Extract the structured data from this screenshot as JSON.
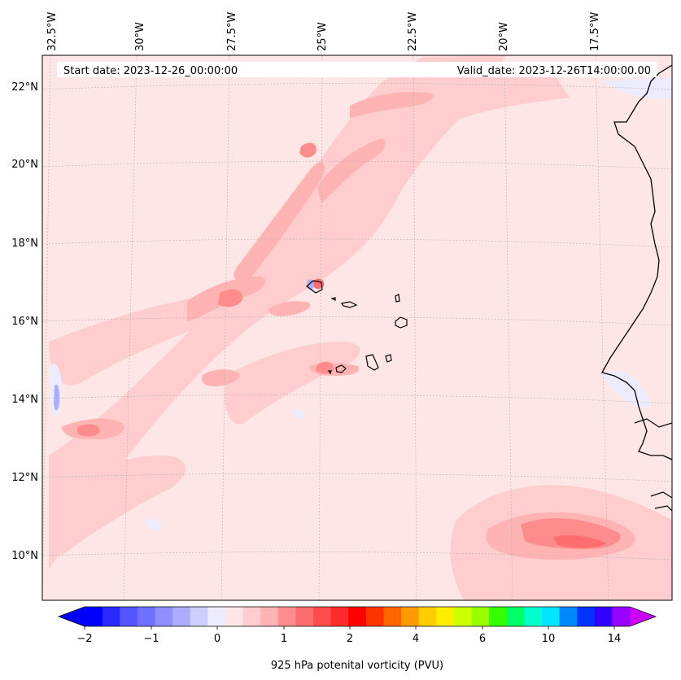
{
  "header": {
    "start_date": "Start date: 2023-12-26_00:00:00",
    "valid_date": "Valid_date: 2023-12-26T14:00:00.00"
  },
  "longitude_labels": [
    "32.5°W",
    "30°W",
    "27.5°W",
    "25°W",
    "22.5°W",
    "20°W",
    "17.5°W"
  ],
  "latitude_labels": [
    "22°N",
    "20°N",
    "18°N",
    "16°N",
    "14°N",
    "12°N",
    "10°N"
  ],
  "colorbar": {
    "label": "925 hPa potenital vorticity (PVU)",
    "tick_labels": [
      "−2",
      "−1",
      "0",
      "1",
      "2",
      "4",
      "6",
      "10",
      "14"
    ],
    "colors": [
      "#0000ff",
      "#2a2aff",
      "#5555ff",
      "#7070ff",
      "#8e8eff",
      "#acacff",
      "#cdcdff",
      "#ececff",
      "#ffe6e6",
      "#ffcdcd",
      "#ffb3b3",
      "#ff8c8c",
      "#ff6e6e",
      "#ff4c4c",
      "#ff2a2a",
      "#ff0000",
      "#ff3300",
      "#ff6600",
      "#ff9900",
      "#ffcc00",
      "#ffee00",
      "#ccff00",
      "#99ff00",
      "#33ff00",
      "#00ff66",
      "#00ffcc",
      "#00e5ff",
      "#0088ff",
      "#0033ff",
      "#3300ff",
      "#9900ff"
    ],
    "extend_left_color": "#0000ff",
    "extend_right_color": "#cc00ff"
  },
  "colors": {
    "background_field": "#ffe6e6",
    "coastline": "#000000",
    "gridline": "#b0b0b0"
  }
}
